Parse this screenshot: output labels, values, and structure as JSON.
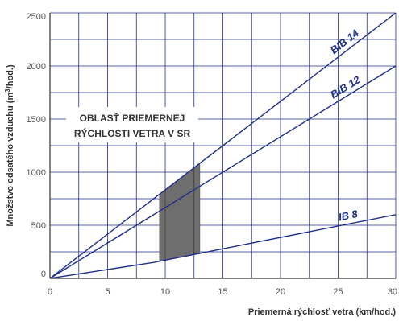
{
  "chart_data": {
    "type": "line",
    "title": "",
    "xlabel": "Priemerná rýchlosť vetra (km/hod.)",
    "ylabel_prefix": "Množstvo odsatého vzduchu (m",
    "ylabel_sup": "3",
    "ylabel_suffix": "/hod.)",
    "xlim": [
      0,
      30
    ],
    "ylim": [
      0,
      2500
    ],
    "x_ticks": [
      0,
      5,
      10,
      15,
      20,
      25,
      30
    ],
    "y_ticks": [
      0,
      500,
      1000,
      1500,
      2000,
      2500
    ],
    "x_tick_labels": [
      "0",
      "5",
      "10",
      "15",
      "20",
      "25",
      "30"
    ],
    "y_tick_labels": [
      "0",
      "500",
      "1000",
      "1500",
      "2000",
      "2500"
    ],
    "grid": true,
    "series": [
      {
        "name": "BIB 14",
        "x": [
          0,
          30
        ],
        "y": [
          0,
          2500
        ]
      },
      {
        "name": "BIB 12",
        "x": [
          0,
          30
        ],
        "y": [
          0,
          2000
        ]
      },
      {
        "name": "IB 8",
        "x": [
          0,
          9,
          30
        ],
        "y": [
          0,
          150,
          600
        ]
      }
    ],
    "shaded_region": {
      "x_from": 9.5,
      "x_to": 13
    },
    "annotation_lines": [
      "OBLASŤ PRIEMERNEJ",
      "RÝCHLOSTI VETRA V SR"
    ],
    "colors": {
      "line": "#1f2f8c",
      "grid": "#1f2f8c",
      "shade": "#6e6e6e",
      "axis": "#333333"
    }
  }
}
